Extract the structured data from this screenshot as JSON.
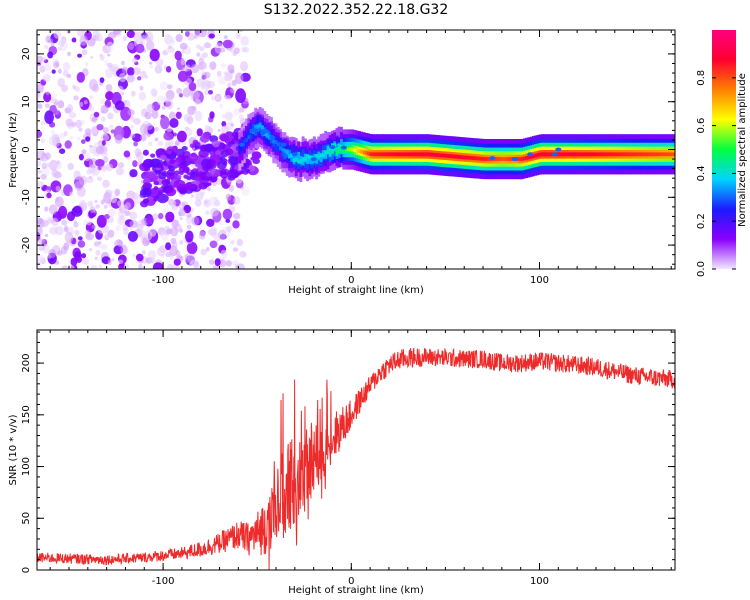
{
  "title": "S132.2022.352.22.18.G32",
  "colors": {
    "snr_line": "#ee2b2b",
    "axis": "#000000",
    "colorbar_stops": [
      "#f2e6ff",
      "#8a00ff",
      "#1a1aff",
      "#00d4ff",
      "#00ff40",
      "#ffff00",
      "#ff8000",
      "#ff0030",
      "#ff0080"
    ]
  },
  "chart_data": [
    {
      "type": "heatmap",
      "xlabel": "Height of straight line (km)",
      "ylabel": "Frequency (Hz)",
      "xlim": [
        -167,
        172
      ],
      "ylim": [
        -25,
        25
      ],
      "xticks": [
        -100,
        0,
        100
      ],
      "yticks": [
        -20,
        -10,
        0,
        10,
        20
      ],
      "colorbar": {
        "label": "Normalized spectral amplitude",
        "range": [
          0,
          1
        ],
        "ticks": [
          0.0,
          0.2,
          0.4,
          0.6,
          0.8
        ]
      },
      "ridge": {
        "x": [
          -60,
          -55,
          -50,
          -45,
          -40,
          -35,
          -30,
          -25,
          -20,
          -15,
          -10,
          -5,
          0,
          10,
          40,
          70,
          80,
          90,
          100,
          110,
          172
        ],
        "freq": [
          0,
          3,
          5,
          3,
          1,
          -1,
          -2,
          -2,
          -2,
          -1,
          0,
          0,
          0,
          -1,
          -1,
          -2,
          -2,
          -2,
          -1,
          -1,
          -1
        ],
        "amplitude": [
          0.25,
          0.3,
          0.35,
          0.35,
          0.3,
          0.35,
          0.4,
          0.4,
          0.4,
          0.4,
          0.45,
          0.5,
          0.6,
          0.85,
          0.9,
          0.85,
          0.8,
          0.85,
          0.9,
          0.9,
          0.8
        ]
      },
      "noise_region": [
        -167,
        -60
      ]
    },
    {
      "type": "line",
      "xlabel": "Height of straight line (km)",
      "ylabel": "SNR (10 * v/v)",
      "xlim": [
        -167,
        172
      ],
      "ylim": [
        0,
        232
      ],
      "xticks": [
        -100,
        0,
        100
      ],
      "yticks": [
        0,
        50,
        100,
        150,
        200
      ],
      "series": [
        {
          "x": [
            -167,
            -150,
            -130,
            -110,
            -90,
            -80,
            -70,
            -65,
            -60,
            -55,
            -50,
            -45,
            -40,
            -35,
            -30,
            -25,
            -20,
            -15,
            -10,
            -5,
            0,
            5,
            10,
            15,
            20,
            25,
            30,
            40,
            50,
            60,
            70,
            80,
            90,
            100,
            110,
            120,
            130,
            140,
            150,
            160,
            172
          ],
          "values": [
            12,
            11,
            10,
            12,
            16,
            20,
            26,
            30,
            34,
            30,
            35,
            45,
            60,
            75,
            85,
            95,
            105,
            118,
            128,
            138,
            150,
            165,
            178,
            190,
            198,
            203,
            205,
            206,
            205,
            204,
            204,
            200,
            200,
            202,
            200,
            198,
            196,
            192,
            188,
            186,
            184
          ],
          "noise": [
            5,
            5,
            5,
            5,
            6,
            8,
            10,
            12,
            14,
            16,
            22,
            30,
            40,
            45,
            45,
            40,
            35,
            30,
            25,
            20,
            15,
            12,
            10,
            10,
            10,
            10,
            10,
            9,
            9,
            9,
            9,
            9,
            9,
            9,
            9,
            9,
            9,
            9,
            9,
            9,
            9
          ]
        }
      ]
    }
  ]
}
